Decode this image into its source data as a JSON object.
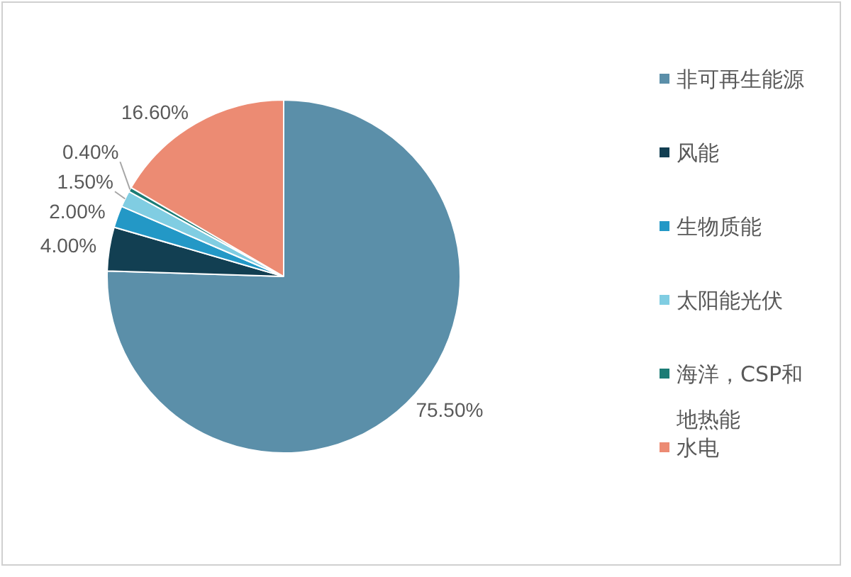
{
  "chart_data": {
    "type": "pie",
    "categories": [
      "非可再生能源",
      "风能",
      "生物质能",
      "太阳能光伏",
      "海洋，CSP和地热能",
      "水电"
    ],
    "values": [
      75.5,
      4,
      2,
      1.5,
      0.4,
      16.6
    ],
    "colors": [
      "#5b8fa9",
      "#123f52",
      "#2398c6",
      "#80cde2",
      "#1b7c75",
      "#ec8b73"
    ],
    "value_labels": [
      "75.50%",
      "4.00%",
      "2.00%",
      "1.50%",
      "0.40%",
      "16.60%"
    ],
    "legend": "right"
  }
}
